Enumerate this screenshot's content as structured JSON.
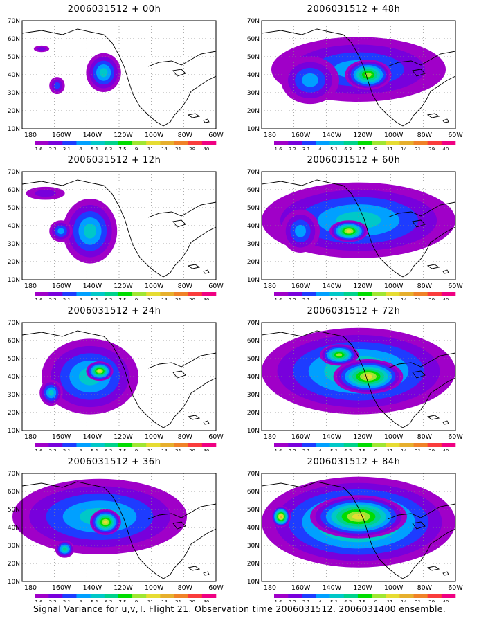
{
  "panels": [
    {
      "title": "2006031512 + 00h"
    },
    {
      "title": "2006031512 + 48h"
    },
    {
      "title": "2006031512 + 12h"
    },
    {
      "title": "2006031512 + 60h"
    },
    {
      "title": "2006031512 + 24h"
    },
    {
      "title": "2006031512 + 72h"
    },
    {
      "title": "2006031512 + 36h"
    },
    {
      "title": "2006031512 + 84h"
    }
  ],
  "axes": {
    "lat_labels": [
      "70N",
      "60N",
      "50N",
      "40N",
      "30N",
      "20N",
      "10N"
    ],
    "lon_labels": [
      "180",
      "160W",
      "140W",
      "120W",
      "100W",
      "80W",
      "60W"
    ]
  },
  "colorbar": {
    "labels": [
      "1.6",
      "2.2",
      "3.1",
      "4",
      "5.1",
      "6.3",
      "7.5",
      "9",
      "11",
      "14",
      "21",
      "29",
      "40"
    ],
    "colors": [
      "#a000c8",
      "#7800dc",
      "#1e3cff",
      "#00a0ff",
      "#00c8c8",
      "#00d28c",
      "#00dc00",
      "#a0e632",
      "#e6dc32",
      "#e6af2d",
      "#f08228",
      "#fa3c3c",
      "#f00082"
    ]
  },
  "caption": "Signal Variance for u,v,T. Flight 21. Observation time 2006031512. 2006031400 ensemble."
}
